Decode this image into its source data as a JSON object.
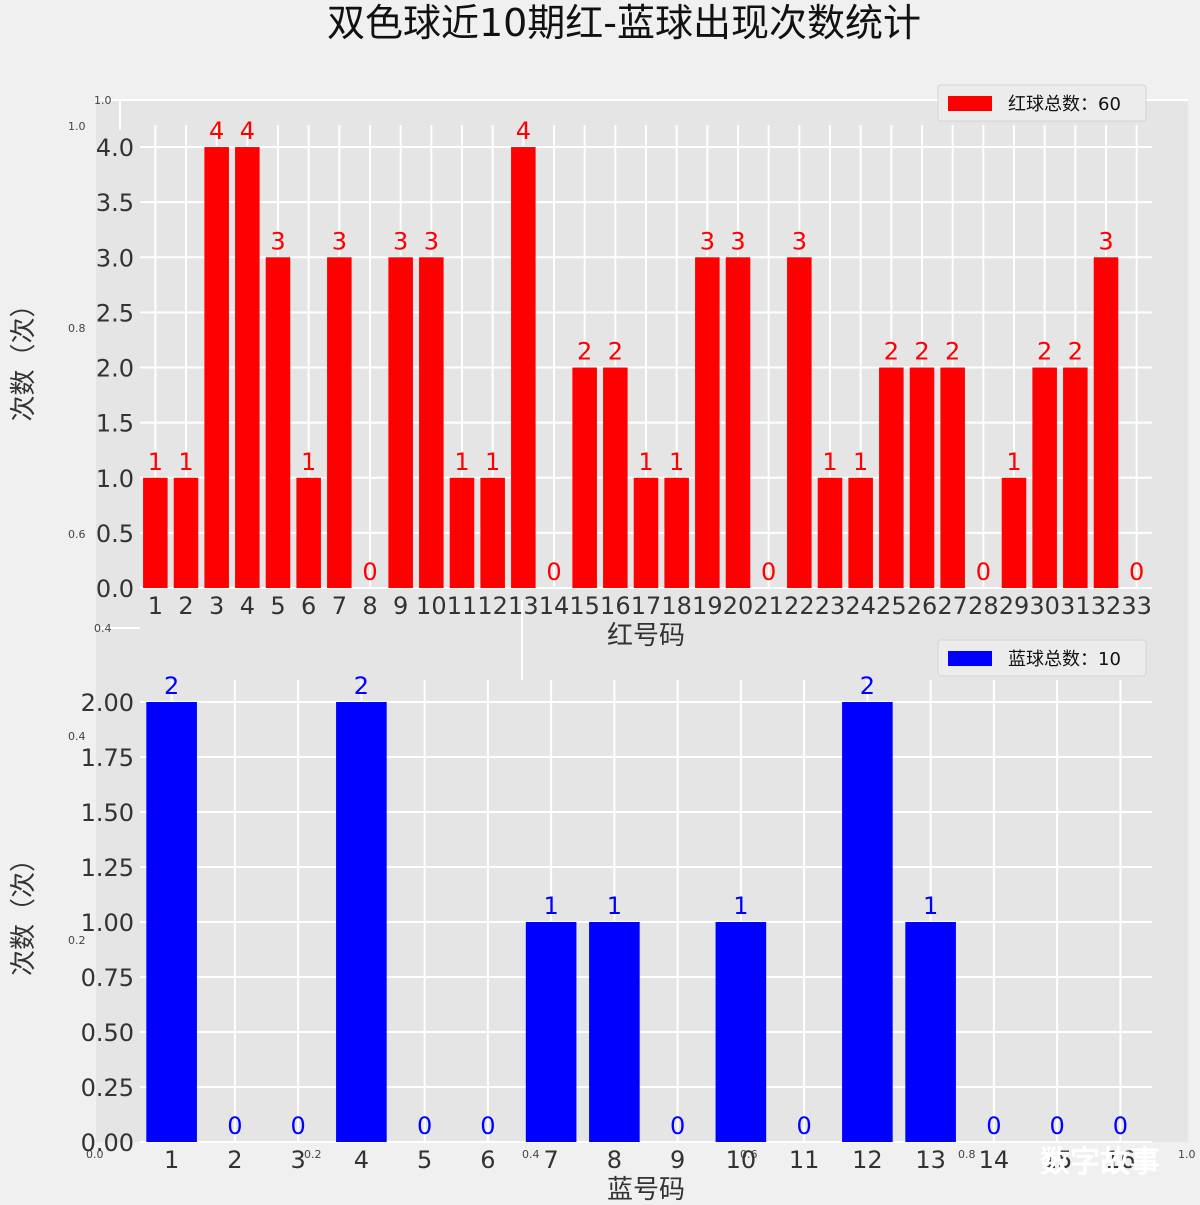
{
  "title": "双色球近10期红-蓝球出现次数统计",
  "watermark": "数字故事",
  "ghost_ticks": {
    "y": [
      "1.0",
      "0.8",
      "0.6",
      "0.4",
      "0.2",
      "0.0"
    ],
    "x": [
      "0.0",
      "0.2",
      "0.4",
      "0.6",
      "0.8",
      "1.0"
    ]
  },
  "chart_data": [
    {
      "type": "bar",
      "color": "#ff0000",
      "categories": [
        "1",
        "2",
        "3",
        "4",
        "5",
        "6",
        "7",
        "8",
        "9",
        "10",
        "11",
        "12",
        "13",
        "14",
        "15",
        "16",
        "17",
        "18",
        "19",
        "20",
        "21",
        "22",
        "23",
        "24",
        "25",
        "26",
        "27",
        "28",
        "29",
        "30",
        "31",
        "32",
        "33"
      ],
      "values": [
        1,
        1,
        4,
        4,
        3,
        1,
        3,
        0,
        3,
        3,
        1,
        1,
        4,
        0,
        2,
        2,
        1,
        1,
        3,
        3,
        0,
        3,
        1,
        1,
        2,
        2,
        2,
        0,
        1,
        2,
        2,
        3,
        0
      ],
      "xlabel": "红号码",
      "ylabel": "次数（次）",
      "ylim": [
        0,
        4.0
      ],
      "yticks": [
        "0.0",
        "0.5",
        "1.0",
        "1.5",
        "2.0",
        "2.5",
        "3.0",
        "3.5",
        "4.0"
      ],
      "legend": "红球总数：60",
      "legend_position": "top-right",
      "grid": true
    },
    {
      "type": "bar",
      "color": "#0000ff",
      "categories": [
        "1",
        "2",
        "3",
        "4",
        "5",
        "6",
        "7",
        "8",
        "9",
        "10",
        "11",
        "12",
        "13",
        "14",
        "15",
        "16"
      ],
      "values": [
        2,
        0,
        0,
        2,
        0,
        0,
        1,
        1,
        0,
        1,
        0,
        2,
        1,
        0,
        0,
        0
      ],
      "xlabel": "蓝号码",
      "ylabel": "次数（次）",
      "ylim": [
        0,
        2.0
      ],
      "yticks": [
        "0.00",
        "0.25",
        "0.50",
        "0.75",
        "1.00",
        "1.25",
        "1.50",
        "1.75",
        "2.00"
      ],
      "legend": "蓝球总数：10",
      "legend_position": "top-right",
      "grid": true
    }
  ]
}
